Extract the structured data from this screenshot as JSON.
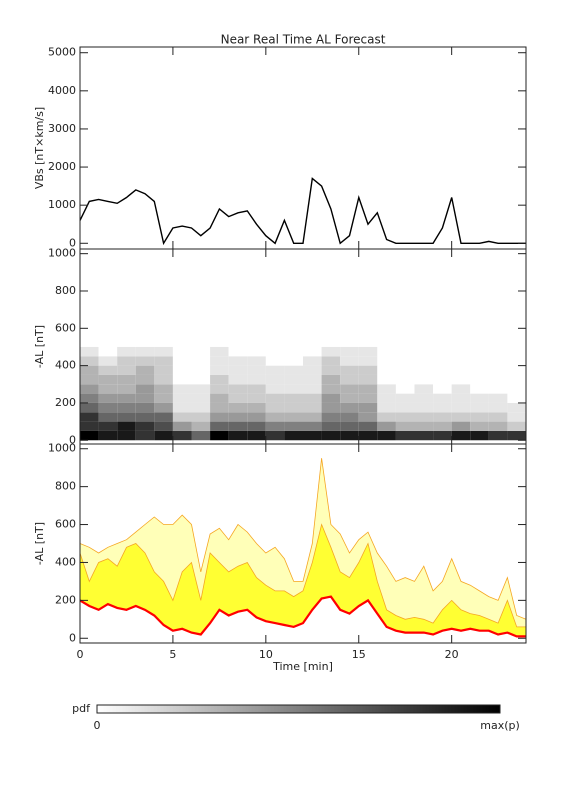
{
  "chart_data": [
    {
      "type": "line",
      "title": "Near Real Time AL Forecast",
      "ylabel": "VBs [nT×km/s]",
      "xlim": [
        0,
        24
      ],
      "xticks": [
        0,
        5,
        10,
        15,
        20
      ],
      "ylim": [
        -150,
        5150
      ],
      "yticks": [
        0,
        1000,
        2000,
        3000,
        4000,
        5000
      ],
      "x": [
        0,
        0.5,
        1,
        1.5,
        2,
        2.5,
        3,
        3.5,
        4,
        4.5,
        5,
        5.5,
        6,
        6.5,
        7,
        7.5,
        8,
        8.5,
        9,
        9.5,
        10,
        10.5,
        11,
        11.5,
        12,
        12.5,
        13,
        13.5,
        14,
        14.5,
        15,
        15.5,
        16,
        16.5,
        17,
        17.5,
        18,
        18.5,
        19,
        19.5,
        20,
        20.5,
        21,
        21.5,
        22,
        22.5,
        23,
        23.5,
        24
      ],
      "series": [
        {
          "color": "#000000",
          "values": [
            600,
            1100,
            1150,
            1100,
            1050,
            1200,
            1400,
            1300,
            1100,
            0,
            400,
            450,
            400,
            200,
            400,
            900,
            700,
            800,
            850,
            500,
            200,
            0,
            600,
            0,
            0,
            1700,
            1500,
            900,
            0,
            200,
            1200,
            500,
            800,
            100,
            0,
            0,
            0,
            0,
            0,
            400,
            1200,
            0,
            0,
            0,
            50,
            0,
            0,
            0,
            0
          ]
        }
      ]
    },
    {
      "type": "heatmap",
      "ylabel": "-AL [nT]",
      "xlim": [
        0,
        24
      ],
      "xticks": [
        0,
        5,
        10,
        15,
        20
      ],
      "ylim": [
        -20,
        1025
      ],
      "yticks": [
        0,
        200,
        400,
        600,
        800,
        1000
      ],
      "xbins": [
        0,
        1,
        2,
        3,
        4,
        5,
        6,
        7,
        8,
        9,
        10,
        11,
        12,
        13,
        14,
        15,
        16,
        17,
        18,
        19,
        20,
        21,
        22,
        23,
        24
      ],
      "ybins": [
        0,
        50,
        100,
        150,
        200,
        250,
        300,
        350,
        400,
        450,
        500
      ],
      "values": [
        [
          1,
          0.9,
          0.9,
          0.8,
          0.9,
          0.8,
          0.6,
          1,
          0.9,
          0.9,
          0.8,
          0.9,
          0.9,
          0.9,
          0.9,
          0.9,
          0.9,
          0.8,
          0.8,
          0.8,
          0.9,
          0.9,
          0.8,
          0.8
        ],
        [
          0.8,
          0.8,
          0.9,
          0.8,
          0.7,
          0.4,
          0.3,
          0.6,
          0.6,
          0.6,
          0.5,
          0.5,
          0.5,
          0.6,
          0.6,
          0.6,
          0.4,
          0.3,
          0.3,
          0.3,
          0.4,
          0.3,
          0.3,
          0.2
        ],
        [
          0.8,
          0.6,
          0.6,
          0.6,
          0.6,
          0.2,
          0.2,
          0.4,
          0.4,
          0.4,
          0.3,
          0.3,
          0.3,
          0.5,
          0.5,
          0.4,
          0.2,
          0.2,
          0.2,
          0.2,
          0.2,
          0.2,
          0.2,
          0.1
        ],
        [
          0.6,
          0.5,
          0.5,
          0.5,
          0.4,
          0.1,
          0.1,
          0.3,
          0.3,
          0.3,
          0.2,
          0.2,
          0.2,
          0.4,
          0.4,
          0.4,
          0.1,
          0.1,
          0.1,
          0.1,
          0.1,
          0.1,
          0.1,
          0.1
        ],
        [
          0.5,
          0.4,
          0.4,
          0.4,
          0.3,
          0.1,
          0.1,
          0.3,
          0.2,
          0.2,
          0.2,
          0.2,
          0.2,
          0.4,
          0.3,
          0.3,
          0.1,
          0.1,
          0.1,
          0.1,
          0.1,
          0.1,
          0.1,
          0
        ],
        [
          0.4,
          0.3,
          0.3,
          0.4,
          0.3,
          0.1,
          0.1,
          0.2,
          0.2,
          0.2,
          0.1,
          0.1,
          0.1,
          0.3,
          0.3,
          0.3,
          0.1,
          0,
          0.1,
          0,
          0.1,
          0,
          0,
          0
        ],
        [
          0.3,
          0.3,
          0.3,
          0.3,
          0.2,
          0,
          0,
          0.2,
          0.1,
          0.1,
          0.1,
          0.1,
          0.1,
          0.3,
          0.2,
          0.2,
          0,
          0,
          0,
          0,
          0,
          0,
          0,
          0
        ],
        [
          0.3,
          0.2,
          0.2,
          0.3,
          0.2,
          0,
          0,
          0.1,
          0.1,
          0.1,
          0.1,
          0.1,
          0.1,
          0.2,
          0.2,
          0.2,
          0,
          0,
          0,
          0,
          0,
          0,
          0,
          0
        ],
        [
          0.2,
          0.1,
          0.2,
          0.2,
          0.2,
          0,
          0,
          0.1,
          0.1,
          0.1,
          0,
          0,
          0.1,
          0.2,
          0.1,
          0.1,
          0,
          0,
          0,
          0,
          0,
          0,
          0,
          0
        ],
        [
          0.1,
          0,
          0.1,
          0.1,
          0.1,
          0,
          0,
          0.1,
          0,
          0,
          0,
          0,
          0,
          0.1,
          0.1,
          0.1,
          0,
          0,
          0,
          0,
          0,
          0,
          0,
          0
        ]
      ]
    },
    {
      "type": "band",
      "ylabel": "-AL [nT]",
      "xlabel": "Time [min]",
      "xlim": [
        0,
        24
      ],
      "xticks": [
        0,
        5,
        10,
        15,
        20
      ],
      "ylim": [
        -25,
        1025
      ],
      "yticks": [
        0,
        200,
        400,
        600,
        800,
        1000
      ],
      "x": [
        0,
        0.5,
        1,
        1.5,
        2,
        2.5,
        3,
        3.5,
        4,
        4.5,
        5,
        5.5,
        6,
        6.5,
        7,
        7.5,
        8,
        8.5,
        9,
        9.5,
        10,
        10.5,
        11,
        11.5,
        12,
        12.5,
        13,
        13.5,
        14,
        14.5,
        15,
        15.5,
        16,
        16.5,
        17,
        17.5,
        18,
        18.5,
        19,
        19.5,
        20,
        20.5,
        21,
        21.5,
        22,
        22.5,
        23,
        23.5,
        24
      ],
      "series": [
        {
          "color": "#f5a623",
          "fill": "#ffffb8",
          "values": [
            500,
            480,
            450,
            480,
            500,
            520,
            560,
            600,
            640,
            600,
            600,
            650,
            600,
            350,
            550,
            580,
            520,
            600,
            560,
            500,
            450,
            480,
            420,
            300,
            300,
            500,
            950,
            600,
            550,
            450,
            520,
            560,
            450,
            380,
            300,
            320,
            300,
            380,
            250,
            300,
            420,
            300,
            280,
            250,
            220,
            200,
            320,
            120,
            100
          ]
        },
        {
          "color": "#f5a623",
          "fill": "#ffff33",
          "values": [
            450,
            300,
            400,
            420,
            380,
            480,
            500,
            450,
            350,
            300,
            200,
            350,
            400,
            200,
            450,
            400,
            350,
            380,
            400,
            320,
            280,
            250,
            250,
            220,
            250,
            400,
            600,
            480,
            350,
            320,
            400,
            500,
            300,
            150,
            120,
            100,
            110,
            100,
            80,
            150,
            200,
            150,
            130,
            120,
            100,
            80,
            200,
            60,
            60
          ]
        },
        {
          "color": "#ff0000",
          "values": [
            200,
            170,
            150,
            180,
            160,
            150,
            170,
            150,
            120,
            70,
            40,
            50,
            30,
            20,
            80,
            150,
            120,
            140,
            150,
            110,
            90,
            80,
            70,
            60,
            80,
            150,
            210,
            220,
            150,
            130,
            170,
            200,
            130,
            60,
            40,
            30,
            30,
            30,
            20,
            40,
            50,
            40,
            50,
            40,
            40,
            20,
            30,
            10,
            10
          ]
        }
      ]
    }
  ],
  "colorbar": {
    "label": "pdf",
    "min_label": "0",
    "max_label": "max(p)"
  }
}
